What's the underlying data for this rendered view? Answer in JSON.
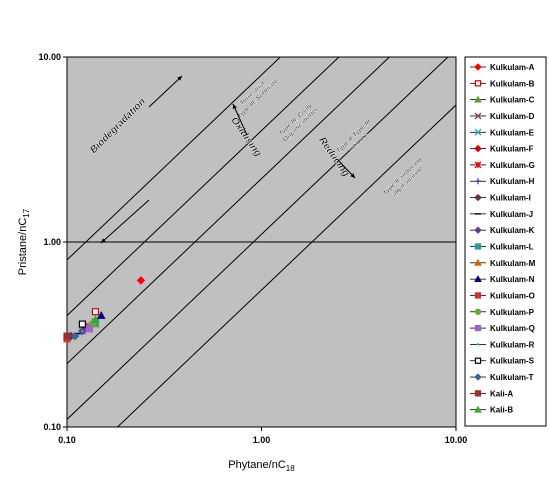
{
  "chart_data": {
    "type": "scatter",
    "xscale": "log",
    "yscale": "log",
    "xlim": [
      0.1,
      10
    ],
    "ylim": [
      0.1,
      10
    ],
    "xlabel": "Phytane/nC",
    "xlabel_sub": "18",
    "ylabel": "Pristane/nC",
    "ylabel_sub": "17",
    "xticks": [
      {
        "value": 0.1,
        "label": "0.10"
      },
      {
        "value": 1,
        "label": "1.00"
      },
      {
        "value": 10,
        "label": "10.00"
      }
    ],
    "yticks": [
      {
        "value": 0.1,
        "label": "0.10"
      },
      {
        "value": 1,
        "label": "1.00"
      },
      {
        "value": 10,
        "label": "10.00"
      }
    ],
    "legend_position": "right",
    "plot_background": "#c0c0c0",
    "series": [
      {
        "name": "Kulkulam-A",
        "marker": "diamond",
        "color": "#ff0000",
        "fill": true,
        "points": [
          [
            0.24,
            0.62
          ]
        ]
      },
      {
        "name": "Kulkulam-B",
        "marker": "square",
        "color": "#cc0000",
        "fill": false,
        "points": [
          [
            0.14,
            0.42
          ]
        ]
      },
      {
        "name": "Kulkulam-C",
        "marker": "triangle",
        "color": "#669933",
        "fill": true,
        "points": [
          [
            0.14,
            0.36
          ]
        ]
      },
      {
        "name": "Kulkulam-D",
        "marker": "x",
        "color": "#993366",
        "fill": false,
        "points": [
          [
            0.13,
            0.34
          ]
        ]
      },
      {
        "name": "Kulkulam-E",
        "marker": "x",
        "color": "#33aacc",
        "fill": false,
        "points": [
          [
            0.12,
            0.33
          ]
        ]
      },
      {
        "name": "Kulkulam-F",
        "marker": "diamond",
        "color": "#cc0000",
        "fill": true,
        "points": [
          [
            0.125,
            0.34
          ]
        ]
      },
      {
        "name": "Kulkulam-G",
        "marker": "star",
        "color": "#ff0000",
        "fill": false,
        "points": [
          [
            0.13,
            0.35
          ]
        ]
      },
      {
        "name": "Kulkulam-H",
        "marker": "plus",
        "color": "#333399",
        "fill": false,
        "points": [
          [
            0.11,
            0.31
          ]
        ]
      },
      {
        "name": "Kulkulam-I",
        "marker": "diamond",
        "color": "#663333",
        "fill": true,
        "points": [
          [
            0.105,
            0.31
          ]
        ]
      },
      {
        "name": "Kulkulam-J",
        "marker": "dash",
        "color": "#000000",
        "fill": false,
        "points": [
          [
            0.115,
            0.32
          ]
        ]
      },
      {
        "name": "Kulkulam-K",
        "marker": "diamond",
        "color": "#663399",
        "fill": true,
        "points": [
          [
            0.12,
            0.33
          ]
        ]
      },
      {
        "name": "Kulkulam-L",
        "marker": "square",
        "color": "#339999",
        "fill": true,
        "points": [
          [
            0.14,
            0.37
          ]
        ]
      },
      {
        "name": "Kulkulam-M",
        "marker": "triangle",
        "color": "#cc6600",
        "fill": true,
        "points": [
          [
            0.13,
            0.35
          ]
        ]
      },
      {
        "name": "Kulkulam-N",
        "marker": "triangle",
        "color": "#000080",
        "fill": true,
        "points": [
          [
            0.15,
            0.4
          ]
        ]
      },
      {
        "name": "Kulkulam-O",
        "marker": "square",
        "color": "#cc3333",
        "fill": true,
        "points": [
          [
            0.1,
            0.3
          ]
        ]
      },
      {
        "name": "Kulkulam-P",
        "marker": "circle",
        "color": "#66aa44",
        "fill": true,
        "points": [
          [
            0.135,
            0.36
          ]
        ]
      },
      {
        "name": "Kulkulam-Q",
        "marker": "square",
        "color": "#9966cc",
        "fill": true,
        "points": [
          [
            0.13,
            0.34
          ]
        ]
      },
      {
        "name": "Kulkulam-R",
        "marker": "dot",
        "color": "#3399cc",
        "fill": true,
        "points": [
          [
            0.12,
            0.33
          ]
        ]
      },
      {
        "name": "Kulkulam-S",
        "marker": "square",
        "color": "#000000",
        "fill": false,
        "points": [
          [
            0.12,
            0.36
          ]
        ]
      },
      {
        "name": "Kulkulam-T",
        "marker": "diamond",
        "color": "#336699",
        "fill": true,
        "points": [
          [
            0.11,
            0.31
          ]
        ]
      },
      {
        "name": "Kali-A",
        "marker": "square",
        "color": "#993333",
        "fill": true,
        "points": [
          [
            0.1,
            0.31
          ]
        ]
      },
      {
        "name": "Kali-B",
        "marker": "triangle",
        "color": "#33aa33",
        "fill": true,
        "points": [
          [
            0.14,
            0.38
          ]
        ]
      }
    ],
    "annotations": [
      {
        "text": "Biodegradation"
      },
      {
        "text": "Oxidising"
      },
      {
        "text": "Reducing"
      },
      {
        "lines": [
          "Terrestrial",
          "Type III, Suberate"
        ]
      },
      {
        "lines": [
          "Type III, Coaly",
          "Organic matter"
        ]
      },
      {
        "lines": [
          "Type II-Type III",
          "mixture"
        ]
      },
      {
        "lines": [
          "Type II, reducing",
          "algal, marine"
        ]
      }
    ]
  }
}
